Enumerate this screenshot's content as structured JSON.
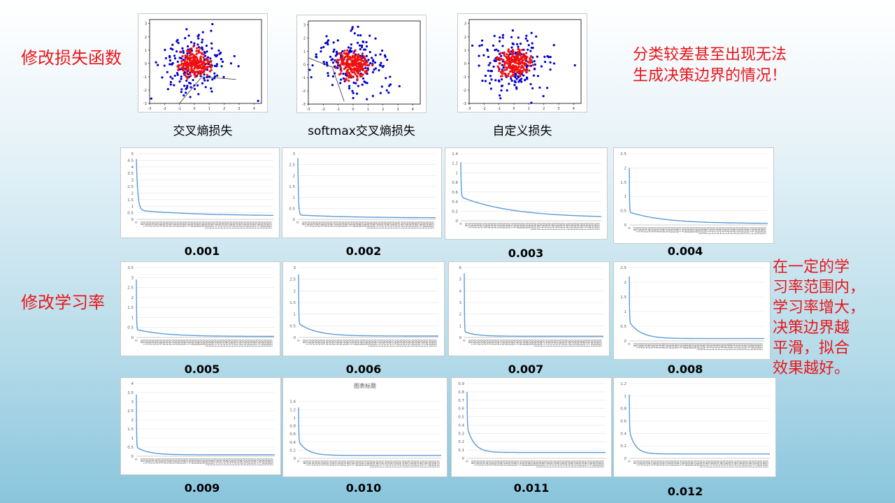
{
  "labels": {
    "loss_section": "修改损失函数",
    "lr_section": "修改学习率",
    "note_loss_line1": "分类较差甚至出现无法",
    "note_loss_line2": "生成决策边界的情况！",
    "note_lr_lines": [
      "在一定的学",
      "习率范围内，",
      "学习率增大，",
      "决策边界越",
      "平滑，拟合",
      "效果越好。"
    ]
  },
  "chart_data": [
    {
      "type": "scatter",
      "title": "",
      "caption": "交叉熵损失",
      "xlim": [
        -3,
        4.5
      ],
      "ylim": [
        -3,
        3.3
      ],
      "xticks": [
        -3,
        -2,
        -1,
        0,
        1,
        2,
        3,
        4
      ],
      "yticks": [
        -3,
        -2,
        -1,
        0,
        1,
        2,
        3
      ],
      "series": [
        {
          "color": "#0000cc"
        },
        {
          "color": "#ee1111"
        }
      ],
      "decision_line": [
        [
          -1.0,
          -3.0
        ],
        [
          0.5,
          -1.0
        ],
        [
          2.8,
          -1.2
        ]
      ]
    },
    {
      "type": "scatter",
      "title": "",
      "caption": "softmax交叉熵损失",
      "xlim": [
        -3,
        4.5
      ],
      "ylim": [
        -3,
        3.3
      ],
      "xticks": [
        -3,
        -2,
        -1,
        0,
        1,
        2,
        3,
        4
      ],
      "yticks": [
        -3,
        -2,
        -1,
        0,
        1,
        2,
        3
      ],
      "series": [
        {
          "color": "#0000cc"
        },
        {
          "color": "#ee1111"
        }
      ],
      "decision_line": [
        [
          -3.0,
          0.5
        ],
        [
          -1.4,
          -0.2
        ],
        [
          -0.6,
          -2.8
        ]
      ]
    },
    {
      "type": "scatter",
      "title": "",
      "caption": "自定义损失",
      "xlim": [
        -3,
        4.5
      ],
      "ylim": [
        -3,
        3.3
      ],
      "xticks": [
        -3,
        -2,
        -1,
        0,
        1,
        2,
        3,
        4
      ],
      "yticks": [
        -3,
        -2,
        -1,
        0,
        1,
        2,
        3
      ],
      "series": [
        {
          "color": "#0000cc"
        },
        {
          "color": "#ee1111"
        }
      ]
    },
    {
      "type": "line",
      "title": "",
      "caption": "0.001",
      "xlim": [
        0,
        1960
      ],
      "ylim": [
        0,
        5
      ],
      "yticks": [
        0,
        0.5,
        1,
        1.5,
        2,
        2.5,
        3,
        3.5,
        4,
        4.5,
        5
      ],
      "start": 4.6,
      "final": 0.25,
      "knee": 0.7,
      "decay": 0.008,
      "tail": 0.0011
    },
    {
      "type": "line",
      "title": "",
      "caption": "0.002",
      "xlim": [
        0,
        1960
      ],
      "ylim": [
        0,
        3
      ],
      "yticks": [
        0,
        0.5,
        1,
        1.5,
        2,
        2.5,
        3
      ],
      "start": 2.8,
      "final": 0.06,
      "knee": 0.2,
      "decay": 0.02,
      "tail": 0.0012
    },
    {
      "type": "line",
      "title": "",
      "caption": "0.003",
      "xlim": [
        0,
        1960
      ],
      "ylim": [
        0,
        1.4
      ],
      "yticks": [
        0,
        0.2,
        0.4,
        0.6,
        0.8,
        1,
        1.2,
        1.4
      ],
      "start": 1.22,
      "final": 0.06,
      "knee": 0.5,
      "decay": 0.03,
      "tail": 0.0014
    },
    {
      "type": "line",
      "title": "",
      "caption": "0.004",
      "xlim": [
        0,
        1960
      ],
      "ylim": [
        0,
        2.5
      ],
      "yticks": [
        0,
        0.5,
        1,
        1.5,
        2,
        2.5
      ],
      "start": 2.0,
      "final": 0.05,
      "knee": 0.45,
      "decay": 0.05,
      "tail": 0.002
    },
    {
      "type": "line",
      "title": "",
      "caption": "0.005",
      "xlim": [
        0,
        1960
      ],
      "ylim": [
        0,
        3.5
      ],
      "yticks": [
        0,
        0.5,
        1,
        1.5,
        2,
        2.5,
        3,
        3.5
      ],
      "start": 2.9,
      "final": 0.05,
      "knee": 0.4,
      "decay": 0.05,
      "tail": 0.0025
    },
    {
      "type": "line",
      "title": "",
      "caption": "0.006",
      "xlim": [
        0,
        1960
      ],
      "ylim": [
        0,
        3
      ],
      "yticks": [
        0,
        0.5,
        1,
        1.5,
        2,
        2.5,
        3
      ],
      "start": 2.7,
      "final": 0.06,
      "knee": 0.6,
      "decay": 0.05,
      "tail": 0.004
    },
    {
      "type": "line",
      "title": "",
      "caption": "0.007",
      "xlim": [
        0,
        1960
      ],
      "ylim": [
        0,
        6
      ],
      "yticks": [
        0,
        1,
        2,
        3,
        4,
        5,
        6
      ],
      "start": 5.5,
      "final": 0.1,
      "knee": 0.5,
      "decay": 0.06,
      "tail": 0.006
    },
    {
      "type": "line",
      "title": "",
      "caption": "0.008",
      "xlim": [
        0,
        1960
      ],
      "ylim": [
        0,
        2.5
      ],
      "yticks": [
        0,
        0.5,
        1,
        1.5,
        2,
        2.5
      ],
      "start": 2.2,
      "final": 0.08,
      "knee": 0.65,
      "decay": 0.05,
      "tail": 0.006
    },
    {
      "type": "line",
      "title": "",
      "caption": "0.009",
      "xlim": [
        0,
        1960
      ],
      "ylim": [
        0,
        4
      ],
      "yticks": [
        0,
        0.5,
        1,
        1.5,
        2,
        2.5,
        3,
        3.5,
        4
      ],
      "start": 3.4,
      "final": 0.08,
      "knee": 0.5,
      "decay": 0.05,
      "tail": 0.006
    },
    {
      "type": "line",
      "title": "图表标题",
      "caption": "0.010",
      "xlim": [
        0,
        1960
      ],
      "ylim": [
        0,
        1.6
      ],
      "yticks": [
        0,
        0.2,
        0.4,
        0.6,
        0.8,
        1,
        1.2,
        1.4
      ],
      "start": 1.25,
      "final": 0.07,
      "knee": 0.42,
      "decay": 0.05,
      "tail": 0.008
    },
    {
      "type": "line",
      "title": "",
      "caption": "0.011",
      "xlim": [
        0,
        1960
      ],
      "ylim": [
        0,
        0.9
      ],
      "yticks": [
        0,
        0.1,
        0.2,
        0.3,
        0.4,
        0.5,
        0.6,
        0.7,
        0.8,
        0.9
      ],
      "start": 0.8,
      "final": 0.07,
      "knee": 0.38,
      "decay": 0.05,
      "tail": 0.01
    },
    {
      "type": "line",
      "title": "",
      "caption": "0.012",
      "xlim": [
        0,
        1960
      ],
      "ylim": [
        0,
        1.2
      ],
      "yticks": [
        0,
        0.2,
        0.4,
        0.6,
        0.8,
        1,
        1.2
      ],
      "start": 1.02,
      "final": 0.07,
      "knee": 0.45,
      "decay": 0.05,
      "tail": 0.012
    }
  ]
}
